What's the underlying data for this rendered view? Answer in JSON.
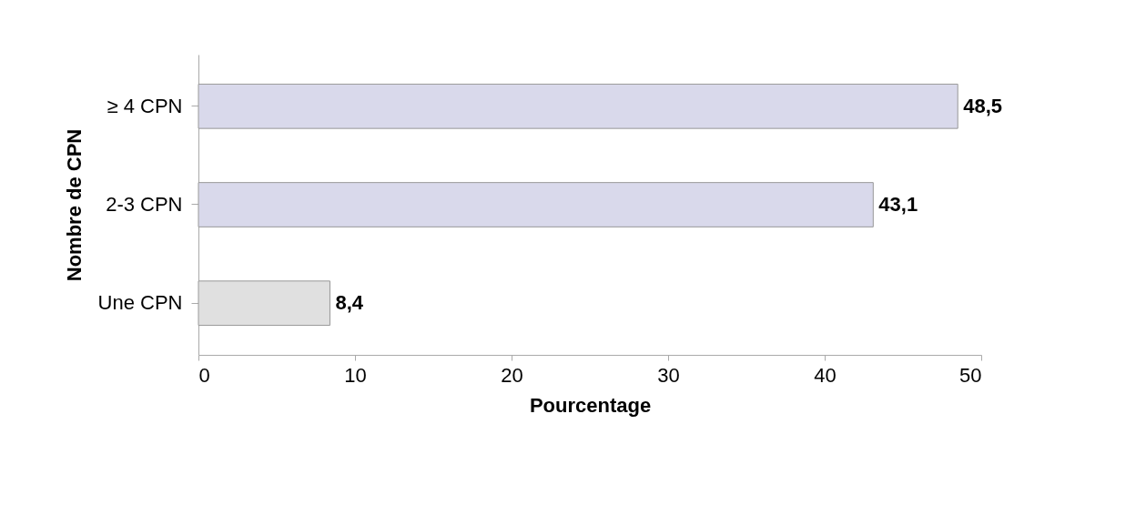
{
  "chart_data": {
    "type": "bar",
    "orientation": "horizontal",
    "categories": [
      "≥ 4 CPN",
      "2-3 CPN",
      "Une CPN"
    ],
    "values": [
      48.5,
      43.1,
      8.4
    ],
    "value_labels": [
      "48,5",
      "43,1",
      "8,4"
    ],
    "colors": [
      "#d9d9eb",
      "#d9d9eb",
      "#e0e0e0"
    ],
    "xlabel": "Pourcentage",
    "ylabel": "Nombre de CPN",
    "xlim": [
      0,
      50
    ],
    "xticks": [
      0,
      10,
      20,
      30,
      40,
      50
    ],
    "grid": false
  }
}
